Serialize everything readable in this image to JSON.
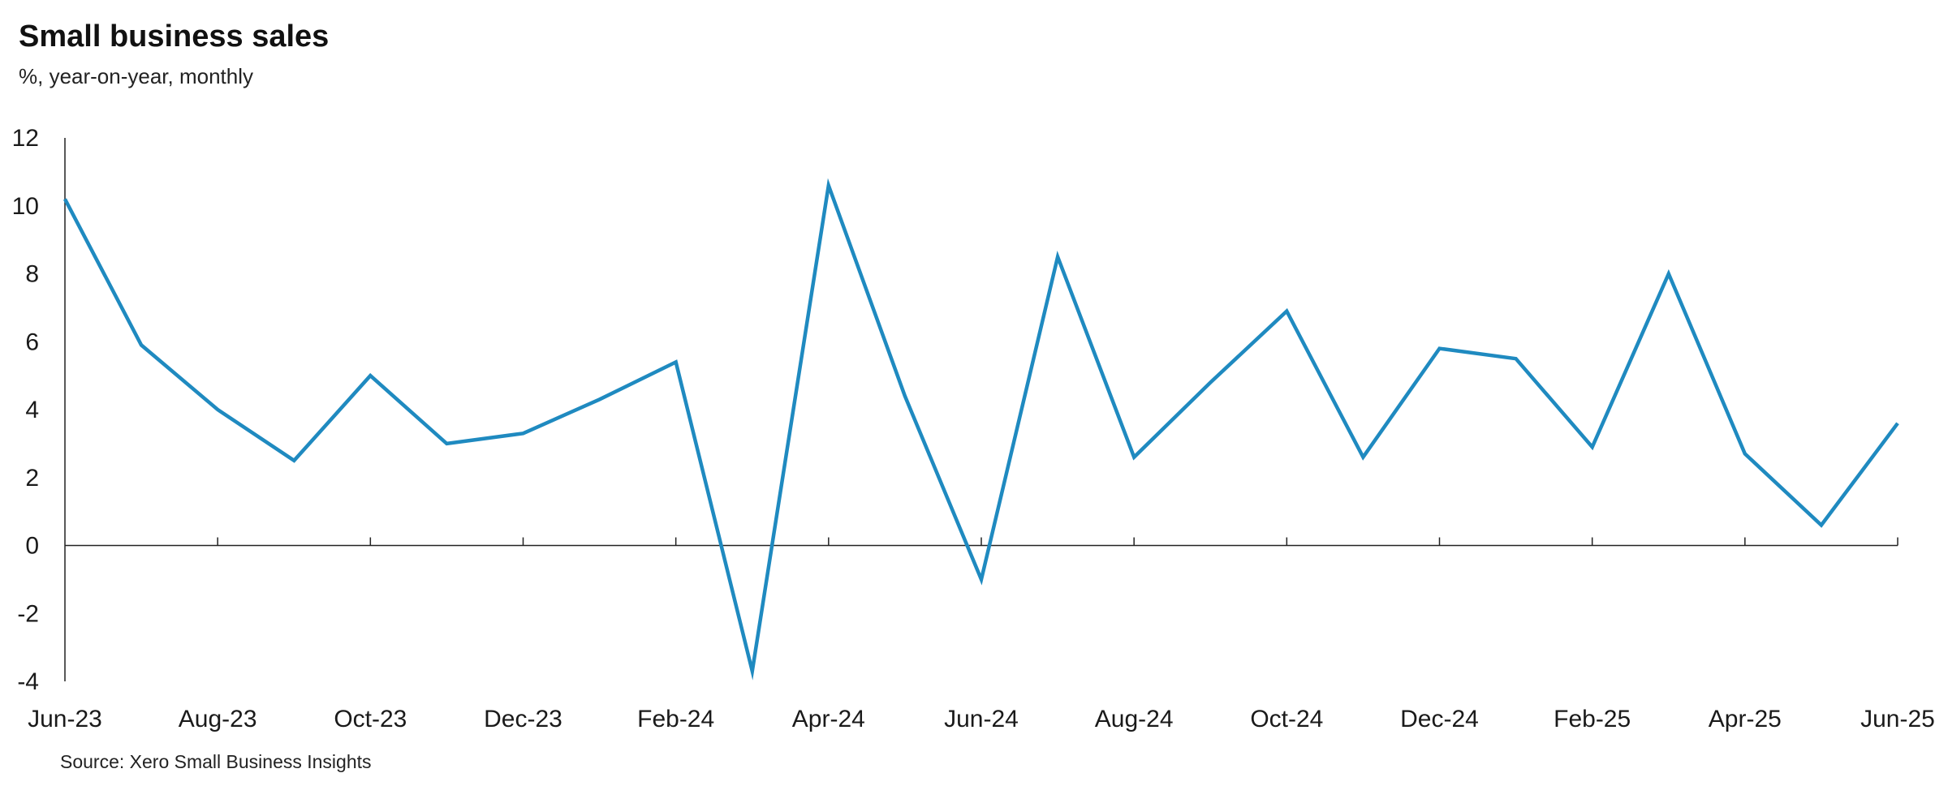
{
  "header": {
    "title": "Small business sales",
    "subtitle": "%, year-on-year, monthly"
  },
  "footer": {
    "source": "Source: Xero Small Business Insights"
  },
  "chart_data": {
    "type": "line",
    "title": "Small business sales",
    "subtitle": "%, year-on-year, monthly",
    "xlabel": "",
    "ylabel": "",
    "ylim": [
      -4,
      12
    ],
    "yticks": [
      -4,
      -2,
      0,
      2,
      4,
      6,
      8,
      10,
      12
    ],
    "x": [
      "Jun-23",
      "Jul-23",
      "Aug-23",
      "Sep-23",
      "Oct-23",
      "Nov-23",
      "Dec-23",
      "Jan-24",
      "Feb-24",
      "Mar-24",
      "Apr-24",
      "May-24",
      "Jun-24",
      "Jul-24",
      "Aug-24",
      "Sep-24",
      "Oct-24",
      "Nov-24",
      "Dec-24",
      "Jan-25",
      "Feb-25",
      "Mar-25",
      "Apr-25",
      "May-25",
      "Jun-25"
    ],
    "xtick_labels": [
      "Jun-23",
      "Aug-23",
      "Oct-23",
      "Dec-23",
      "Feb-24",
      "Apr-24",
      "Jun-24",
      "Aug-24",
      "Oct-24",
      "Dec-24",
      "Feb-25",
      "Apr-25",
      "Jun-25"
    ],
    "series": [
      {
        "values": [
          10.2,
          5.9,
          4.0,
          2.5,
          5.0,
          3.0,
          3.3,
          4.3,
          5.4,
          -3.7,
          10.6,
          4.4,
          -1.0,
          8.5,
          2.6,
          4.8,
          6.9,
          2.6,
          5.8,
          5.5,
          2.9,
          8.0,
          2.7,
          0.6,
          3.6
        ],
        "color": "#1f8ac0"
      }
    ],
    "grid": false,
    "legend": "none"
  }
}
